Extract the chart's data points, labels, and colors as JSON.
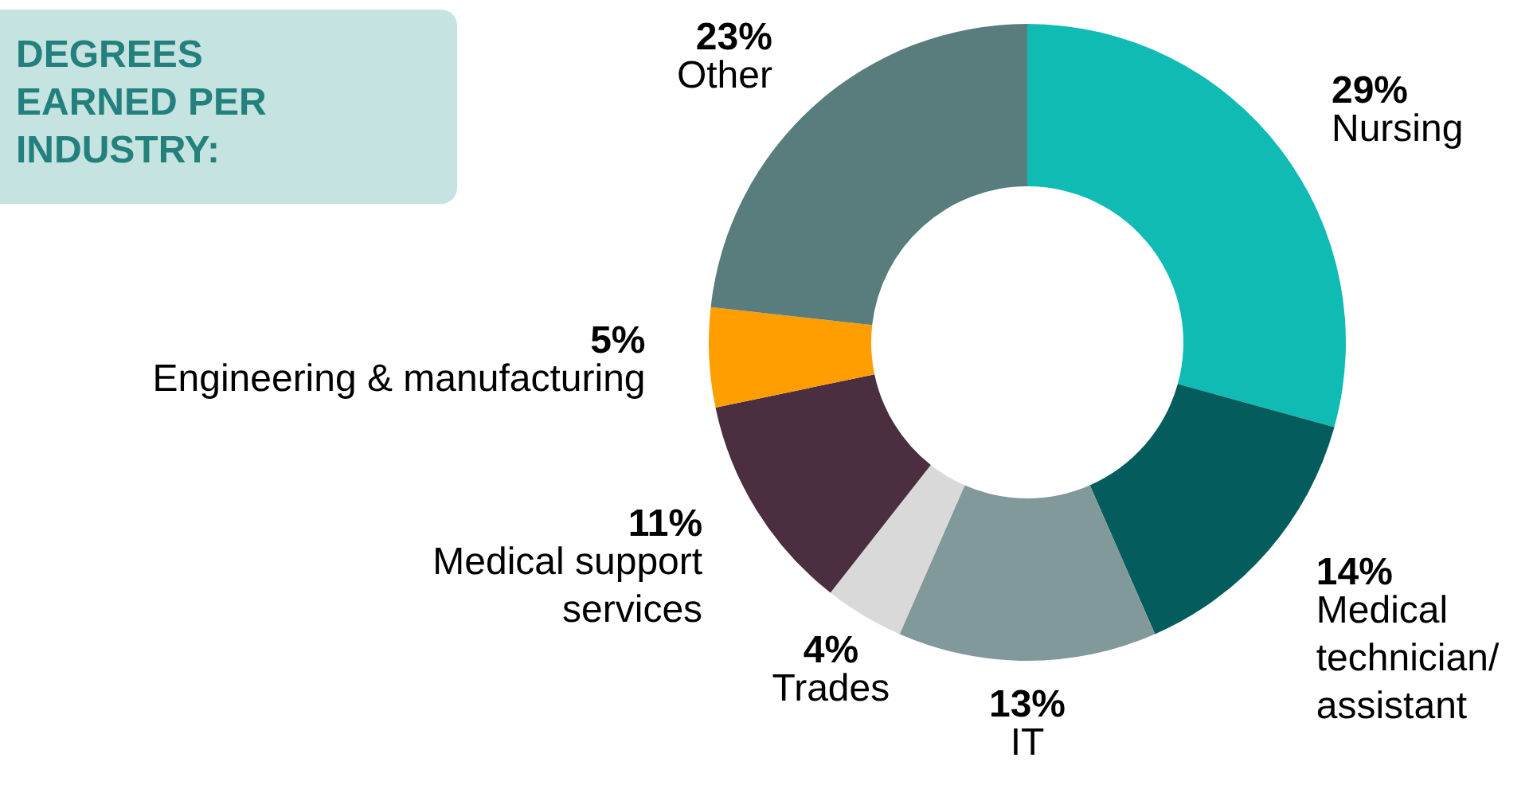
{
  "chart_data": {
    "type": "donut",
    "title": "DEGREES EARNED PER INDUSTRY:",
    "categories": [
      "Nursing",
      "Medical technician/ assistant",
      "IT",
      "Trades",
      "Medical support services",
      "Engineering & manufacturing",
      "Other"
    ],
    "values": [
      29,
      14,
      13,
      4,
      11,
      5,
      23
    ],
    "colors": [
      "#10bbb3",
      "#055c5c",
      "#82999b",
      "#d9d9d9",
      "#4b2e3f",
      "#ff9e00",
      "#587d7c"
    ],
    "value_labels": [
      "29%",
      "14%",
      "13%",
      "4%",
      "11%",
      "5%",
      "23%"
    ]
  }
}
